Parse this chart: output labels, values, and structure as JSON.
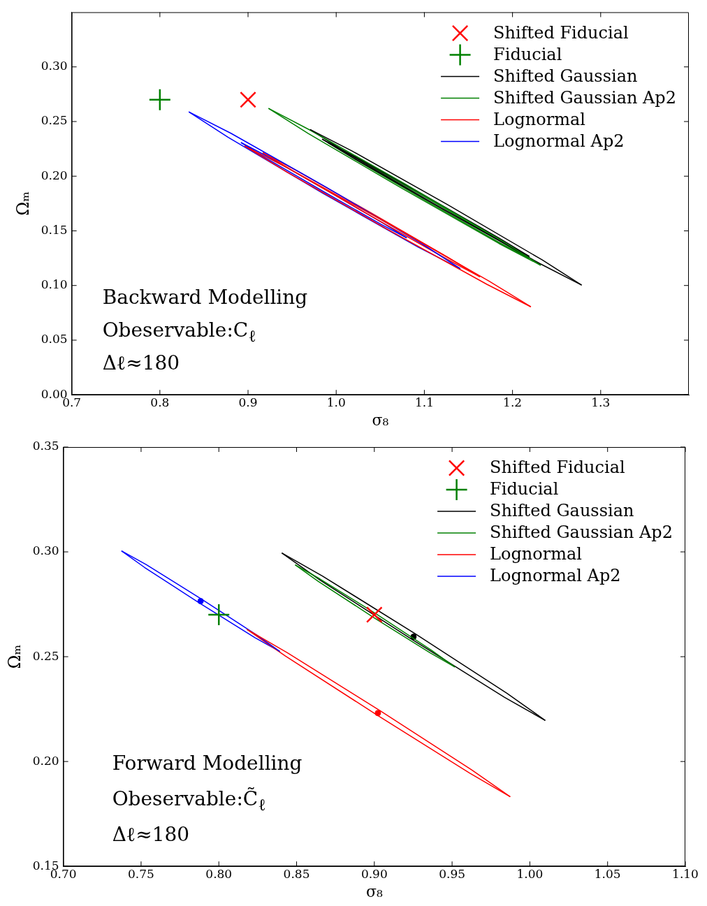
{
  "chart_data": [
    {
      "type": "line",
      "xlabel": "σ₈",
      "ylabel": "Ωₘ",
      "xlim": [
        0.7,
        1.4
      ],
      "ylim": [
        0,
        0.35
      ],
      "xticks": [
        {
          "value": 0.7,
          "label": "0.7"
        },
        {
          "value": 0.8,
          "label": "0.8"
        },
        {
          "value": 0.9,
          "label": "0.9"
        },
        {
          "value": 1.0,
          "label": "1.0"
        },
        {
          "value": 1.1,
          "label": "1.1"
        },
        {
          "value": 1.2,
          "label": "1.2"
        },
        {
          "value": 1.3,
          "label": "1.3"
        }
      ],
      "yticks": [
        {
          "value": 0,
          "label": "0.00"
        },
        {
          "value": 0.05,
          "label": "0.05"
        },
        {
          "value": 0.1,
          "label": "0.10"
        },
        {
          "value": 0.15,
          "label": "0.15"
        },
        {
          "value": 0.2,
          "label": "0.20"
        },
        {
          "value": 0.25,
          "label": "0.25"
        },
        {
          "value": 0.3,
          "label": "0.30"
        }
      ],
      "legend": "top right",
      "annotations": [
        "Backward Modelling",
        "Obeservable:C$_{ℓ}$",
        "Δℓ≈180"
      ],
      "series": [
        {
          "name": "Shifted Fiducial",
          "type": "scatter",
          "marker": "x",
          "color": "#ff0000",
          "x": [
            0.9
          ],
          "values": [
            0.27
          ]
        },
        {
          "name": "Fiducial",
          "type": "scatter",
          "marker": "cross",
          "color": "#008000",
          "x": [
            0.8
          ],
          "values": [
            0.27
          ]
        },
        {
          "name": "Shifted Gaussian",
          "color": "#000000",
          "x": [
            0.9704,
            1.0179,
            1.1262,
            1.2335,
            1.2784
          ],
          "values": [
            0.2427,
            0.2231,
            0.174,
            0.1235,
            0.1004
          ]
        },
        {
          "name": "Shifted Gaussian Ap2",
          "color": "#008000",
          "x": [
            0.9232,
            0.9707,
            1.0792,
            1.1869,
            1.232
          ],
          "values": [
            0.262,
            0.242,
            0.1924,
            0.1415,
            0.1185
          ]
        },
        {
          "name": "Lognormal",
          "color": "#ff0000",
          "x": [
            0.896,
            0.9459,
            1.06,
            1.1733,
            1.2208
          ],
          "values": [
            0.2277,
            0.2071,
            0.1562,
            0.1041,
            0.0805
          ]
        },
        {
          "name": "Lognormal Ap2",
          "color": "#0000ff",
          "x": [
            0.8328,
            0.8805,
            0.9888,
            1.0961,
            1.1408
          ],
          "values": [
            0.2589,
            0.2393,
            0.1899,
            0.1388,
            0.1154
          ]
        },
        {
          "color": "#000000",
          "x": [
            0.9704,
            1.0153,
            1.1226,
            1.2309,
            1.2784
          ],
          "values": [
            0.2427,
            0.2197,
            0.1692,
            0.1201,
            0.1004
          ]
        },
        {
          "color": "#008000",
          "x": [
            0.9232,
            0.9683,
            1.076,
            1.1845,
            1.232
          ],
          "values": [
            0.262,
            0.239,
            0.1882,
            0.1385,
            0.1185
          ]
        },
        {
          "color": "#ff0000",
          "x": [
            0.896,
            0.9435,
            1.0568,
            1.1709,
            1.2208
          ],
          "values": [
            0.2277,
            0.2041,
            0.152,
            0.1011,
            0.0805
          ]
        },
        {
          "color": "#0000ff",
          "x": [
            0.8328,
            0.8775,
            0.9848,
            1.0931,
            1.1408
          ],
          "values": [
            0.2589,
            0.2355,
            0.1845,
            0.135,
            0.1154
          ]
        },
        {
          "color": "#000000",
          "x": [
            0.984,
            1.0199,
            1.1024,
            1.1845,
            1.2192
          ],
          "values": [
            0.2339,
            0.2186,
            0.1814,
            0.1435,
            0.1266
          ]
        },
        {
          "color": "#000000",
          "x": [
            0.984,
            1.0187,
            1.1008,
            1.1833,
            1.2192
          ],
          "values": [
            0.2339,
            0.217,
            0.1792,
            0.1419,
            0.1266
          ]
        },
        {
          "color": "#008000",
          "x": [
            0.9904,
            1.0252,
            1.1052,
            1.1848,
            1.2184
          ],
          "values": [
            0.2308,
            0.2157,
            0.1789,
            0.1415,
            0.1248
          ]
        },
        {
          "color": "#008000",
          "x": [
            0.9904,
            1.024,
            1.1036,
            1.1836,
            1.2184
          ],
          "values": [
            0.2308,
            0.2141,
            0.1767,
            0.1399,
            0.1248
          ]
        },
        {
          "color": "#ff0000",
          "x": [
            0.9168,
            0.9544,
            1.0408,
            1.1268,
            1.1632
          ],
          "values": [
            0.2215,
            0.2053,
            0.1658,
            0.1257,
            0.1079
          ]
        },
        {
          "color": "#ff0000",
          "x": [
            0.9168,
            0.9532,
            1.0392,
            1.1256,
            1.1632
          ],
          "values": [
            0.2215,
            0.2037,
            0.1636,
            0.1241,
            0.1079
          ]
        },
        {
          "color": "#0000ff",
          "x": [
            0.892,
            0.9208,
            0.9868,
            1.0524,
            1.08
          ],
          "values": [
            0.2308,
            0.2185,
            0.1883,
            0.1574,
            0.1435
          ]
        },
        {
          "color": "#0000ff",
          "x": [
            0.892,
            0.9196,
            0.9852,
            1.0512,
            1.08
          ],
          "values": [
            0.2308,
            0.2169,
            0.1861,
            0.1558,
            0.1435
          ]
        }
      ]
    },
    {
      "type": "line",
      "xlabel": "σ₈",
      "ylabel": "Ωₘ",
      "xlim": [
        0.7,
        1.1
      ],
      "ylim": [
        0.15,
        0.35
      ],
      "xticks": [
        {
          "value": 0.7,
          "label": "0.70"
        },
        {
          "value": 0.75,
          "label": "0.75"
        },
        {
          "value": 0.8,
          "label": "0.80"
        },
        {
          "value": 0.85,
          "label": "0.85"
        },
        {
          "value": 0.9,
          "label": "0.90"
        },
        {
          "value": 0.95,
          "label": "0.95"
        },
        {
          "value": 1.0,
          "label": "1.00"
        },
        {
          "value": 1.05,
          "label": "1.05"
        },
        {
          "value": 1.1,
          "label": "1.10"
        }
      ],
      "yticks": [
        {
          "value": 0.15,
          "label": "0.15"
        },
        {
          "value": 0.2,
          "label": "0.20"
        },
        {
          "value": 0.25,
          "label": "0.25"
        },
        {
          "value": 0.3,
          "label": "0.30"
        },
        {
          "value": 0.35,
          "label": "0.35"
        }
      ],
      "legend": "top right",
      "annotations": [
        "Forward Modelling",
        "Obeservable:C̃$_{ℓ}$",
        "Δℓ≈180"
      ],
      "series": [
        {
          "name": "Shifted Fiducial",
          "type": "scatter",
          "marker": "x",
          "color": "#ff0000",
          "x": [
            0.9
          ],
          "values": [
            0.27
          ]
        },
        {
          "name": "Fiducial",
          "type": "scatter",
          "marker": "cross",
          "color": "#008000",
          "x": [
            0.8
          ],
          "values": [
            0.27
          ]
        },
        {
          "name": "Shifted Gaussian",
          "color": "#000000",
          "x": [
            0.8405,
            0.8666,
            0.9262,
            0.9852,
            1.0099
          ],
          "values": [
            0.2995,
            0.2885,
            0.261,
            0.2326,
            0.2196
          ]
        },
        {
          "name": "Shifted Gaussian Ap2",
          "color": "#008000",
          "x": [
            0.8491,
            0.865,
            0.9012,
            0.9369,
            0.9518
          ],
          "values": [
            0.2938,
            0.2871,
            0.2704,
            0.253,
            0.2451
          ]
        },
        {
          "name": "Lognormal",
          "color": "#ff0000",
          "x": [
            0.818,
            0.844,
            0.9035,
            0.9626,
            0.9874
          ],
          "values": [
            0.2631,
            0.2519,
            0.2243,
            0.196,
            0.1832
          ]
        },
        {
          "name": "Lognormal Ap2",
          "color": "#0000ff",
          "x": [
            0.7374,
            0.7532,
            0.789,
            0.8244,
            0.8392
          ],
          "values": [
            0.3005,
            0.294,
            0.2774,
            0.2603,
            0.2525
          ]
        },
        {
          "color": "#000000",
          "x": [
            0.8405,
            0.8652,
            0.9242,
            0.9838,
            1.0099
          ],
          "values": [
            0.2995,
            0.2865,
            0.2582,
            0.2306,
            0.2196
          ]
        },
        {
          "color": "#008000",
          "x": [
            0.8491,
            0.864,
            0.8998,
            0.9359,
            0.9518
          ],
          "values": [
            0.2938,
            0.2859,
            0.2686,
            0.2518,
            0.2451
          ]
        },
        {
          "color": "#ff0000",
          "x": [
            0.818,
            0.8428,
            0.9019,
            0.9614,
            0.9874
          ],
          "values": [
            0.2631,
            0.2503,
            0.2221,
            0.1944,
            0.1832
          ]
        },
        {
          "color": "#0000ff",
          "x": [
            0.7374,
            0.7522,
            0.7876,
            0.8234,
            0.8392
          ],
          "values": [
            0.3005,
            0.2926,
            0.2756,
            0.259,
            0.2525
          ]
        },
        {
          "type": "scatter",
          "marker": "circle",
          "color": "#000000",
          "x": [
            0.9252
          ],
          "values": [
            0.2595
          ]
        },
        {
          "type": "scatter",
          "marker": "circle",
          "color": "#0000ff",
          "x": [
            0.7883
          ],
          "values": [
            0.2765
          ]
        },
        {
          "type": "scatter",
          "marker": "circle",
          "color": "#ff0000",
          "x": [
            0.9023
          ],
          "values": [
            0.2231
          ]
        }
      ]
    }
  ]
}
